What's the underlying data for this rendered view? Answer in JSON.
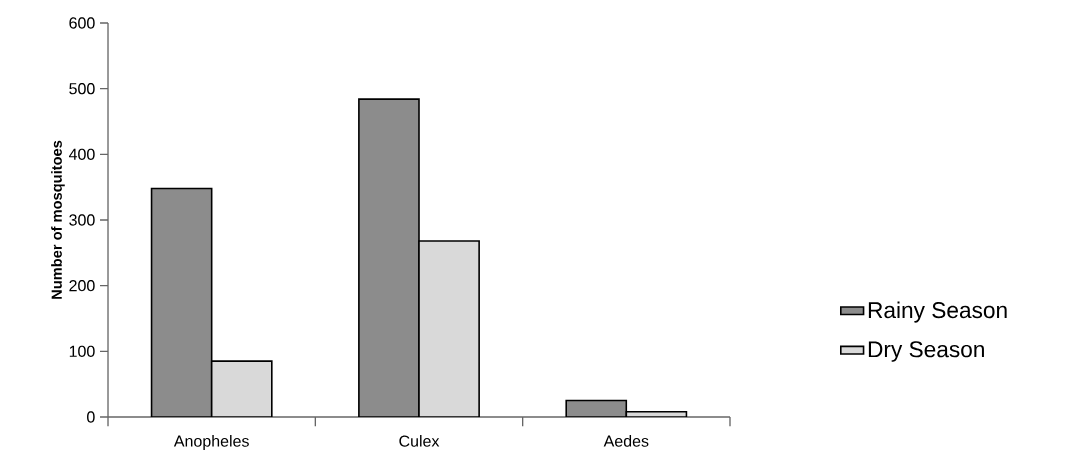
{
  "chart_data": {
    "type": "bar",
    "ylabel": "Number of mosquitoes",
    "categories": [
      "Anopheles",
      "Culex",
      "Aedes"
    ],
    "series": [
      {
        "name": "Rainy Season",
        "color": "#8c8c8c",
        "values": [
          348,
          484,
          25
        ]
      },
      {
        "name": "Dry Season",
        "color": "#d9d9d9",
        "values": [
          85,
          268,
          8
        ]
      }
    ],
    "ylim": [
      0,
      600
    ],
    "yticks": [
      0,
      100,
      200,
      300,
      400,
      500,
      600
    ],
    "grid": false,
    "legend": "right"
  }
}
